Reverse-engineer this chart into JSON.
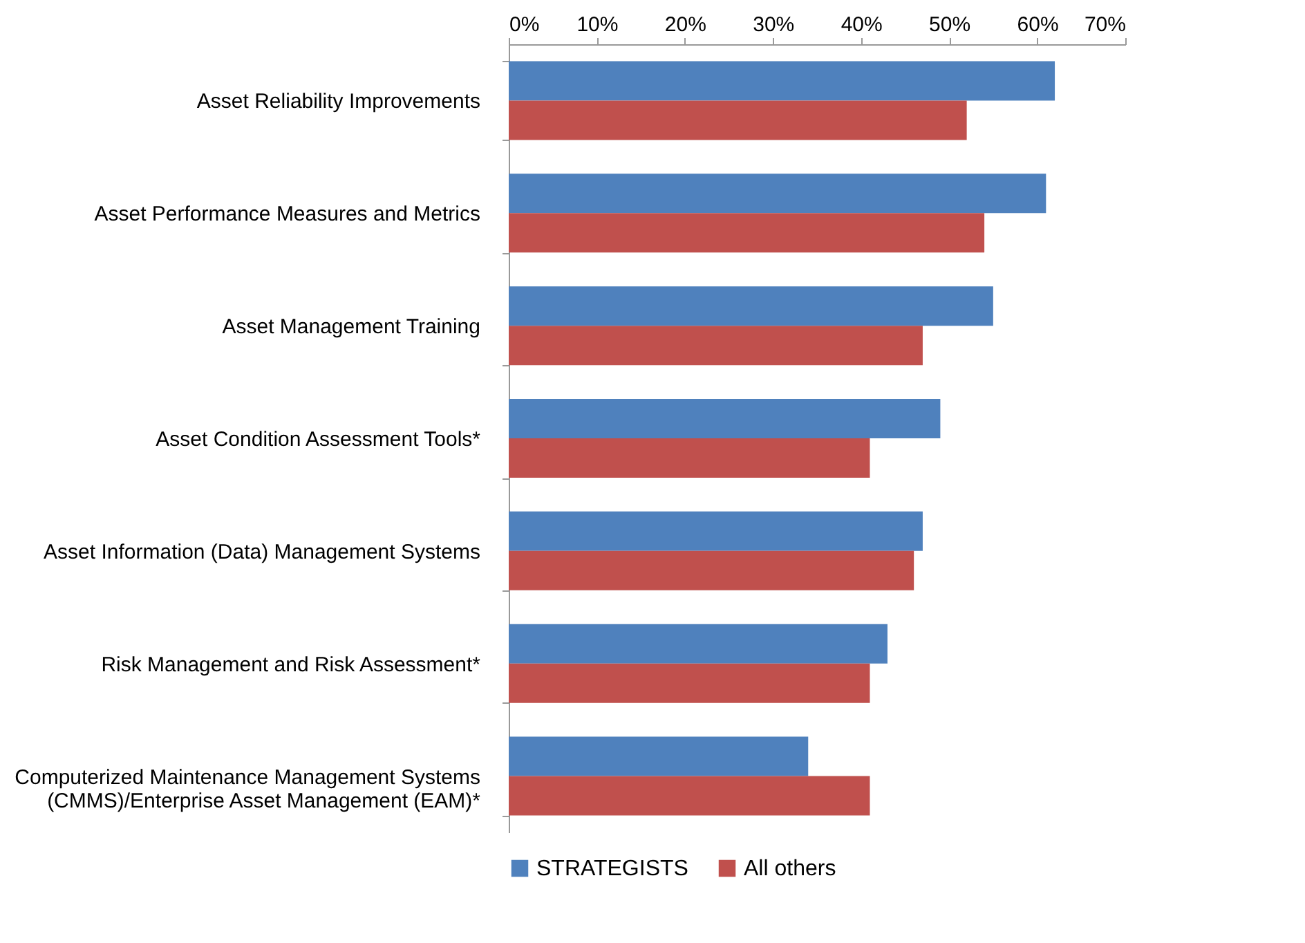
{
  "chart_data": {
    "type": "bar",
    "orientation": "horizontal",
    "categories": [
      "Asset Reliability  Improvements",
      "Asset Performance Measures and Metrics",
      "Asset Management  Training",
      "Asset Condition Assessment Tools*",
      "Asset Information  (Data) Management Systems",
      "Risk Management and Risk Assessment*",
      "Computerized Maintenance Management Systems (CMMS)/Enterprise Asset Management (EAM)*"
    ],
    "series": [
      {
        "name": "STRATEGISTS",
        "color": "#4f81bd",
        "values": [
          62,
          61,
          55,
          49,
          47,
          43,
          34
        ]
      },
      {
        "name": "All others",
        "color": "#c0504d",
        "values": [
          52,
          54,
          47,
          41,
          46,
          41,
          41
        ]
      }
    ],
    "xlim": [
      0,
      70
    ],
    "xticks": [
      {
        "value": 0,
        "label": "0%"
      },
      {
        "value": 10,
        "label": "10%"
      },
      {
        "value": 20,
        "label": "20%"
      },
      {
        "value": 30,
        "label": "30%"
      },
      {
        "value": 40,
        "label": "40%"
      },
      {
        "value": 50,
        "label": "50%"
      },
      {
        "value": 60,
        "label": "60%"
      },
      {
        "value": 70,
        "label": "70%"
      }
    ],
    "grid": false,
    "legend": "bottom"
  }
}
